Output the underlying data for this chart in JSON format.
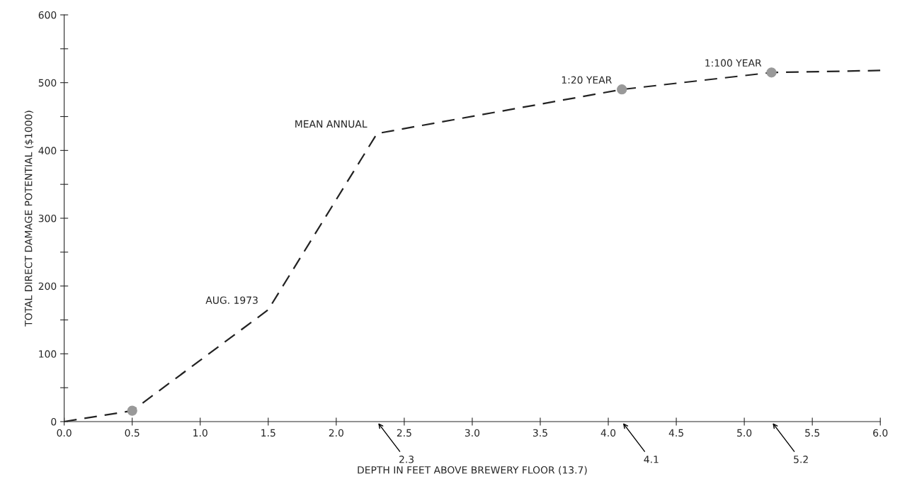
{
  "chart_data": {
    "type": "line",
    "xlabel": "DEPTH IN FEET ABOVE BREWERY FLOOR (13.7)",
    "ylabel": "TOTAL DIRECT DAMAGE POTENTIAL ($1000)",
    "series": [
      {
        "color": "#222222",
        "line_style": "dashed",
        "marker": "none",
        "x": [
          0,
          0.5,
          1.5,
          2.3,
          4.1,
          5.2,
          6.0
        ],
        "values": [
          0,
          16,
          165,
          425,
          490,
          515,
          518
        ]
      },
      {
        "type": "scatter",
        "color": "#999999",
        "marker": "circle",
        "x": [
          0.5,
          4.1,
          5.2
        ],
        "values": [
          16,
          490,
          515
        ]
      }
    ],
    "xlim": [
      0,
      6.0
    ],
    "xticks": [
      {
        "value": 0,
        "label": "0.0"
      },
      0.5,
      {
        "value": 1,
        "label": "1.0"
      },
      1.5,
      {
        "value": 2,
        "label": "2.0"
      },
      2.5,
      {
        "value": 3,
        "label": "3.0"
      },
      3.5,
      {
        "value": 4,
        "label": "4.0"
      },
      4.5,
      {
        "value": 5,
        "label": "5.0"
      },
      5.5,
      {
        "value": 6,
        "label": "6.0"
      }
    ],
    "ylim": [
      0,
      600
    ],
    "yticks": [
      0,
      {
        "value": 50,
        "label": null
      },
      100,
      {
        "value": 150,
        "label": null
      },
      200,
      {
        "value": 250,
        "label": null
      },
      300,
      {
        "value": 350,
        "label": null
      },
      400,
      {
        "value": 450,
        "label": null
      },
      500,
      {
        "value": 550,
        "label": null
      },
      600
    ],
    "grid": false,
    "legend": false,
    "annotations": [
      {
        "text": "AUG. 1973",
        "x": 1.5,
        "y": 165
      },
      {
        "text": "MEAN ANNUAL",
        "x": 2.3,
        "y": 425
      },
      {
        "text": "1:20 YEAR",
        "x": 4.1,
        "y": 490
      },
      {
        "text": "1:100 YEAR",
        "x": 5.2,
        "y": 515
      },
      "2.3",
      "4.1",
      "5.2"
    ]
  }
}
